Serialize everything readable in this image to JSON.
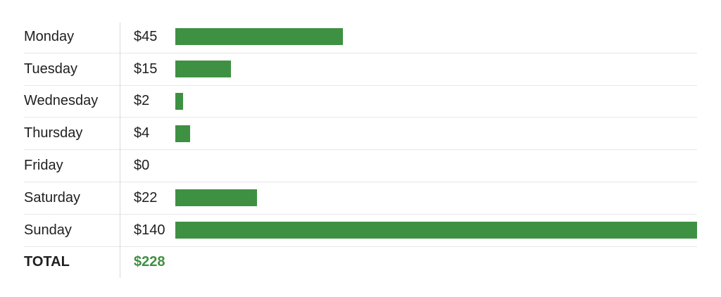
{
  "theme": {
    "background": "#ffffff",
    "bar_color": "#3e9142",
    "total_value_color": "#3e9142",
    "text_color": "#1f1f1f",
    "row_divider_color": "#e7e7e7",
    "column_divider_color": "#d9d9d9"
  },
  "chart_data": {
    "type": "bar",
    "orientation": "horizontal",
    "title": "",
    "xlabel": "",
    "ylabel": "",
    "categories": [
      "Monday",
      "Tuesday",
      "Wednesday",
      "Thursday",
      "Friday",
      "Saturday",
      "Sunday"
    ],
    "values": [
      45,
      15,
      2,
      4,
      0,
      22,
      140
    ],
    "value_labels": [
      "$45",
      "$15",
      "$2",
      "$4",
      "$0",
      "$22",
      "$140"
    ],
    "xlim": [
      0,
      140
    ],
    "grid": false,
    "legend": false,
    "total": {
      "label": "TOTAL",
      "value": 228,
      "value_label": "$228"
    }
  }
}
